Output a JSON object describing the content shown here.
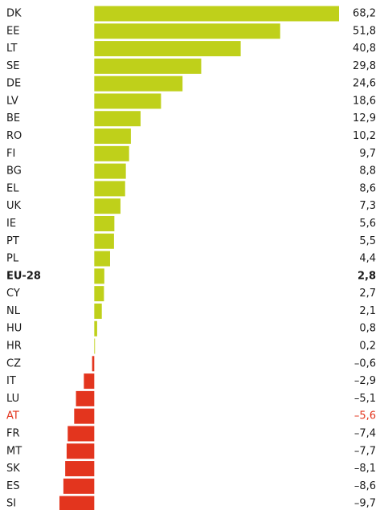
{
  "chart_data": {
    "type": "bar",
    "orientation": "horizontal",
    "categories": [
      "DK",
      "EE",
      "LT",
      "SE",
      "DE",
      "LV",
      "BE",
      "RO",
      "FI",
      "BG",
      "EL",
      "UK",
      "IE",
      "PT",
      "PL",
      "EU-28",
      "CY",
      "NL",
      "HU",
      "HR",
      "CZ",
      "IT",
      "LU",
      "AT",
      "FR",
      "MT",
      "SK",
      "ES",
      "SI"
    ],
    "values": [
      68.2,
      51.8,
      40.8,
      29.8,
      24.6,
      18.6,
      12.9,
      10.2,
      9.7,
      8.8,
      8.6,
      7.3,
      5.6,
      5.5,
      4.4,
      2.8,
      2.7,
      2.1,
      0.8,
      0.2,
      -0.6,
      -2.9,
      -5.1,
      -5.6,
      -7.4,
      -7.7,
      -8.1,
      -8.6,
      -9.7
    ],
    "value_labels": [
      "68,2",
      "51,8",
      "40,8",
      "29,8",
      "24,6",
      "18,6",
      "12,9",
      "10,2",
      "9,7",
      "8,8",
      "8,6",
      "7,3",
      "5,6",
      "5,5",
      "4,4",
      "2,8",
      "2,7",
      "2,1",
      "0,8",
      "0,2",
      "–0,6",
      "–2,9",
      "–5,1",
      "–5,6",
      "–7,4",
      "–7,7",
      "–8,1",
      "–8,6",
      "–9,7"
    ],
    "positive_color": "#bfd01a",
    "negative_color": "#e3351e",
    "bold": [
      "EU-28"
    ],
    "highlight": [
      "AT"
    ]
  }
}
